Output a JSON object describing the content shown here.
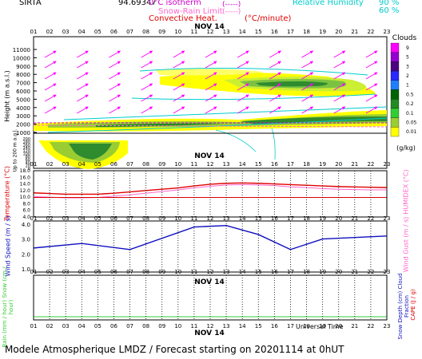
{
  "header": {
    "station": "SIRTA",
    "coords": "94.69347",
    "isotherm_label": "0°C isotherm",
    "isotherm_sym": "(-----)",
    "snow_rain_label": "Snow-Rain Limit",
    "snow_rain_sym": "(-----)",
    "convective_label": "Convective Heat.",
    "convective_unit": "(°C/minute)",
    "rh_label": "Relative Humidity",
    "rh_90": "90 %",
    "rh_60": "60 %"
  },
  "date_label": "NOV 14",
  "hours": [
    "01",
    "02",
    "03",
    "04",
    "05",
    "06",
    "07",
    "08",
    "09",
    "10",
    "11",
    "12",
    "13",
    "14",
    "15",
    "16",
    "17",
    "18",
    "19",
    "20",
    "21",
    "22",
    "23"
  ],
  "clouds_legend": {
    "title": "Clouds",
    "levels": [
      "9",
      "5",
      "3",
      "2",
      "1",
      "0.5",
      "0.2",
      "0.1",
      "0.05",
      "0.01"
    ],
    "colors": [
      "#ff00ff",
      "#9400d3",
      "#4b0082",
      "#2828ff",
      "#1f7fff",
      "#006400",
      "#228b22",
      "#32cd32",
      "#9acd32",
      "#ffff00"
    ],
    "unit": "(g/kg)"
  },
  "panel_height": {
    "ylabel": "Height (m a.s.l.)",
    "ylabel2": "Up to 200 m a.g.l.",
    "ticks_upper": [
      "11000",
      "10000",
      "9000",
      "8000",
      "7000",
      "6000",
      "5000",
      "4000",
      "3000",
      "2000",
      "1000"
    ],
    "ticks_lower": [
      "200",
      "180",
      "160",
      "140",
      "120",
      "100",
      "80",
      "60",
      "40",
      "20",
      "0"
    ]
  },
  "panel_temp": {
    "ylabel": "Temperature (°C)",
    "ylabel_right": "HUMIDEX (°C)",
    "ticks": [
      "18.0",
      "16.0",
      "14.0",
      "12.0",
      "10.0",
      "8.0",
      "6.0",
      "4.0"
    ]
  },
  "panel_wind": {
    "ylabel": "Wind Speed (m / s)",
    "ylabel_right": "Wind Gust (m / s)",
    "ticks": [
      "4.0",
      "3.0",
      "2.0",
      "1.0"
    ]
  },
  "panel_rain": {
    "ylabel": "Rain (mm / hour) Snow (cm / hour)",
    "ylabel_right": "CAPE (J / g)",
    "ylabel_right2": "Snow Depth (cm) Cloud Fraction",
    "xlabel": "Universal Time"
  },
  "footer": "Modele Atmospherique LMDZ / Forecast starting on 20201114 at 0hUT",
  "chart_data": [
    {
      "type": "line",
      "x": [
        "01",
        "02",
        "03",
        "04",
        "05",
        "06",
        "07",
        "08",
        "09",
        "10",
        "11",
        "12",
        "13",
        "14",
        "15",
        "16",
        "17",
        "18",
        "19",
        "20",
        "21",
        "22",
        "23"
      ],
      "series": [
        {
          "values": [
            11.3,
            11.1,
            10.9,
            10.9,
            10.9,
            11.2,
            11.6,
            12.0,
            12.4,
            12.8,
            13.4,
            13.9,
            14.2,
            14.3,
            14.2,
            14.0,
            13.8,
            13.6,
            13.4,
            13.2,
            13.1,
            13.0,
            12.9
          ],
          "color": "#e00000"
        },
        {
          "values": [
            10.2,
            10.0,
            9.8,
            9.8,
            9.9,
            10.3,
            10.7,
            11.2,
            11.7,
            12.2,
            12.8,
            13.3,
            13.7,
            13.8,
            13.7,
            13.5,
            13.1,
            12.9,
            12.6,
            12.4,
            12.3,
            12.2,
            12.2
          ],
          "color": "#ff66cc"
        },
        {
          "values": [
            9.9,
            9.9,
            9.9,
            9.9,
            9.9,
            9.9,
            9.9,
            9.9,
            9.9,
            9.9,
            9.9,
            9.9,
            9.9,
            9.9,
            9.9,
            9.9,
            9.9,
            9.9,
            9.9,
            9.9,
            9.9,
            9.9,
            9.9
          ],
          "color": "#e00000"
        }
      ],
      "ylim": [
        4,
        18
      ]
    },
    {
      "type": "line",
      "x": [
        "01",
        "04",
        "07",
        "11",
        "13",
        "15",
        "17",
        "19",
        "23"
      ],
      "series": [
        {
          "values": [
            2.4,
            2.7,
            2.3,
            3.8,
            3.9,
            3.3,
            2.3,
            3.0,
            3.2
          ],
          "color": "#1010c0"
        }
      ],
      "ylim": [
        1,
        4
      ]
    }
  ]
}
